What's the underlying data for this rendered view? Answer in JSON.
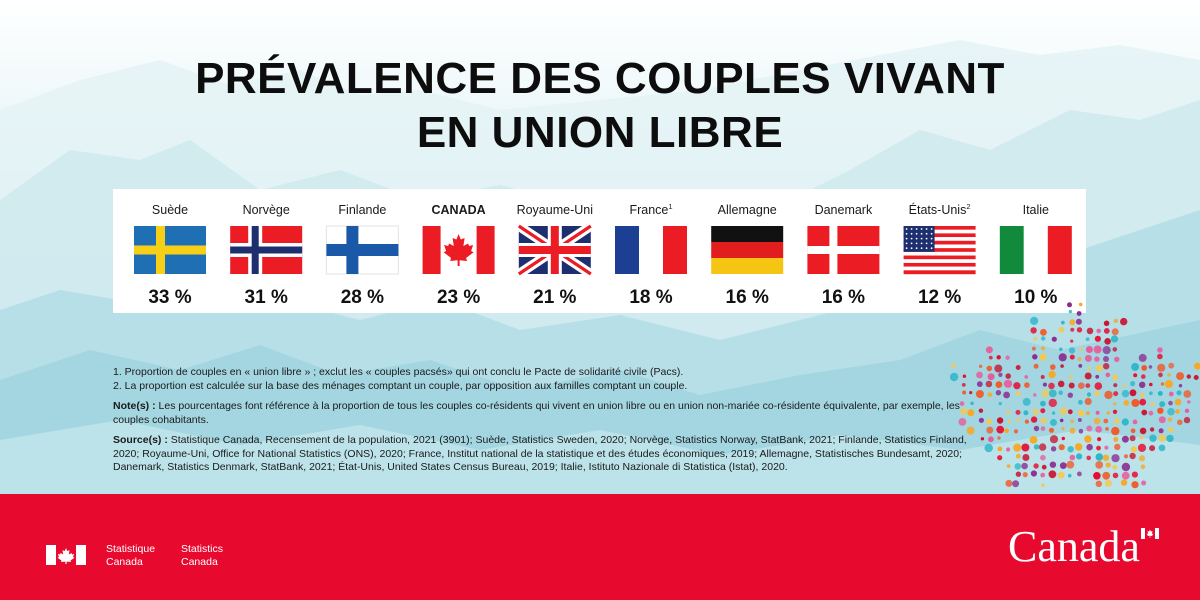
{
  "title_lines": [
    "PRÉVALENCE DES COUPLES VIVANT",
    "EN UNION LIBRE"
  ],
  "chart_data": {
    "type": "bar",
    "categories": [
      "Suède",
      "Norvège",
      "Finlande",
      "CANADA",
      "Royaume-Uni",
      "France",
      "Allemagne",
      "Danemark",
      "États-Unis",
      "Italie"
    ],
    "footnote_marks": [
      "",
      "",
      "",
      "",
      "",
      "1",
      "",
      "",
      "2",
      ""
    ],
    "values": [
      33,
      31,
      28,
      23,
      21,
      18,
      16,
      16,
      12,
      10
    ],
    "value_labels": [
      "33 %",
      "31 %",
      "28 %",
      "23 %",
      "21 %",
      "18 %",
      "16 %",
      "16 %",
      "12 %",
      "10 %"
    ],
    "flags": [
      "sweden-flag",
      "norway-flag",
      "finland-flag",
      "canada-flag",
      "uk-flag",
      "france-flag",
      "germany-flag",
      "denmark-flag",
      "usa-flag",
      "italy-flag"
    ],
    "highlight": "CANADA"
  },
  "notes": {
    "footnote1": "1. Proportion de couples en « union libre » ; exclut les « couples pacsés» qui ont conclu le Pacte de solidarité civile (Pacs).",
    "footnote2": "2. La proportion est calculée sur la base des ménages comptant un couple, par opposition aux familles comptant un couple.",
    "note_label": "Note(s) :",
    "note_text": "Les pourcentages font référence à la proportion de tous les couples co-résidents qui vivent en union libre ou en union non-mariée co-résidente équivalente, par exemple, les couples cohabitants.",
    "source_label": "Source(s) :",
    "source_text": "Statistique Canada, Recensement de la population, 2021 (3901); Suède, Statistics Sweden, 2020; Norvège, Statistics Norway, StatBank, 2021; Finlande, Statistics Finland, 2020; Royaume-Uni, Office for National Statistics (ONS), 2020; France, Institut national de la statistique et des études économiques, 2019; Allemagne, Statistisches Bundesamt, 2020; Danemark, Statistics Denmark, StatBank, 2021; État-Unis, United States Census Bureau, 2019; Italie, Istituto Nazionale di Statistica (Istat), 2020."
  },
  "footer": {
    "agency_fr_line1": "Statistique",
    "agency_fr_line2": "Canada",
    "agency_en_line1": "Statistics",
    "agency_en_line2": "Canada",
    "wordmark": "Canada"
  },
  "colors": {
    "footer_red": "#e8092e",
    "flag_red": "#ec1c24",
    "white": "#ffffff"
  }
}
